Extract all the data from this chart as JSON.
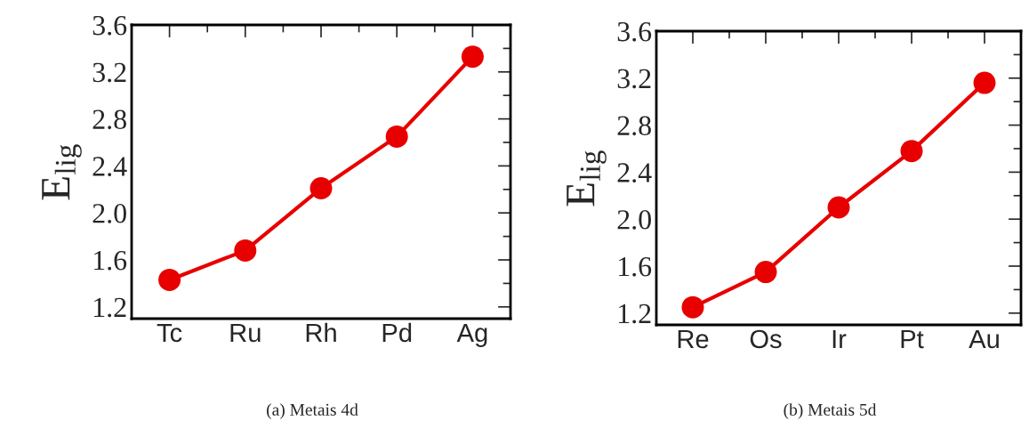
{
  "chart_data": [
    {
      "type": "line",
      "title": "(a) Metais 4d",
      "ylabel": "E$_{lig}$",
      "categories": [
        "Tc",
        "Ru",
        "Rh",
        "Pd",
        "Ag"
      ],
      "series": [
        {
          "color": "#e80000",
          "values": [
            1.43,
            1.68,
            2.21,
            2.65,
            3.33
          ]
        }
      ],
      "ylim": [
        1.1,
        3.6
      ],
      "yticks": [
        1.2,
        1.6,
        {
          "value": 2,
          "label": "2.0"
        },
        2.4,
        2.8,
        3.2,
        3.6
      ],
      "marker": "circle",
      "line_style": "solid",
      "grid": false,
      "legend": false
    },
    {
      "type": "line",
      "title": "(b) Metais 5d",
      "ylabel": "E$_{lig}$",
      "categories": [
        "Re",
        "Os",
        "Ir",
        "Pt",
        "Au"
      ],
      "series": [
        {
          "color": "#e80000",
          "values": [
            1.25,
            1.55,
            2.1,
            2.58,
            3.16
          ]
        }
      ],
      "ylim": [
        1.1,
        3.6
      ],
      "yticks": [
        1.2,
        1.6,
        {
          "value": 2,
          "label": "2.0"
        },
        2.4,
        2.8,
        3.2,
        3.6
      ],
      "marker": "circle",
      "line_style": "solid",
      "grid": false,
      "legend": false
    }
  ]
}
